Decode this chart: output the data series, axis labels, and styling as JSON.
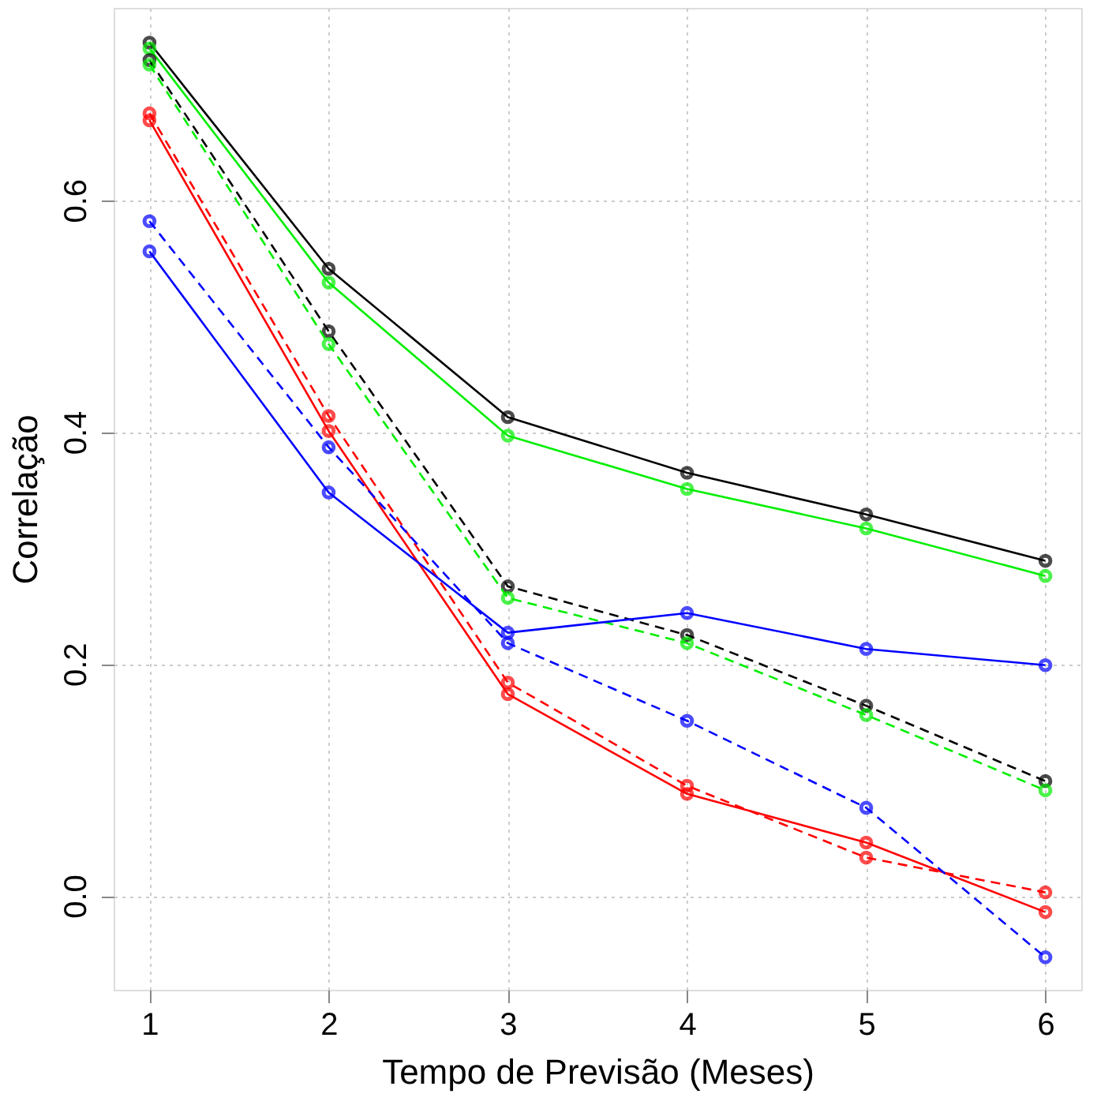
{
  "chart_data": {
    "type": "line",
    "xlabel": "Tempo de Previsão (Meses)",
    "ylabel": "Correlação",
    "x": [
      1,
      2,
      3,
      4,
      5,
      6
    ],
    "xlim": [
      0.8,
      6.2
    ],
    "ylim": [
      -0.081,
      0.766
    ],
    "xticks": [
      1,
      2,
      3,
      4,
      5,
      6
    ],
    "yticks": [
      {
        "value": 0,
        "label": "0.0"
      },
      {
        "value": 0.2,
        "label": "0.2"
      },
      {
        "value": 0.4,
        "label": "0.4"
      },
      {
        "value": 0.6,
        "label": "0.6"
      }
    ],
    "grid": true,
    "marker": "circle",
    "series": [
      {
        "color": "#000000",
        "line_style": "solid",
        "values": [
          0.736,
          0.541,
          0.413,
          0.365,
          0.329,
          0.289
        ]
      },
      {
        "color": "#00ee00",
        "line_style": "solid",
        "values": [
          0.731,
          0.529,
          0.397,
          0.351,
          0.317,
          0.276
        ]
      },
      {
        "color": "#000000",
        "line_style": "dashed",
        "values": [
          0.721,
          0.487,
          0.267,
          0.225,
          0.164,
          0.099
        ]
      },
      {
        "color": "#00ee00",
        "line_style": "dashed",
        "values": [
          0.717,
          0.476,
          0.257,
          0.218,
          0.156,
          0.091
        ]
      },
      {
        "color": "#ff0000",
        "line_style": "dashed",
        "values": [
          0.675,
          0.414,
          0.184,
          0.095,
          0.033,
          0.003
        ]
      },
      {
        "color": "#ff0000",
        "line_style": "solid",
        "values": [
          0.669,
          0.401,
          0.174,
          0.088,
          0.046,
          -0.014
        ]
      },
      {
        "color": "#0000ff",
        "line_style": "dashed",
        "values": [
          0.582,
          0.387,
          0.218,
          0.151,
          0.076,
          -0.053
        ]
      },
      {
        "color": "#0000ff",
        "line_style": "solid",
        "values": [
          0.556,
          0.348,
          0.227,
          0.244,
          0.213,
          0.199
        ]
      }
    ]
  }
}
